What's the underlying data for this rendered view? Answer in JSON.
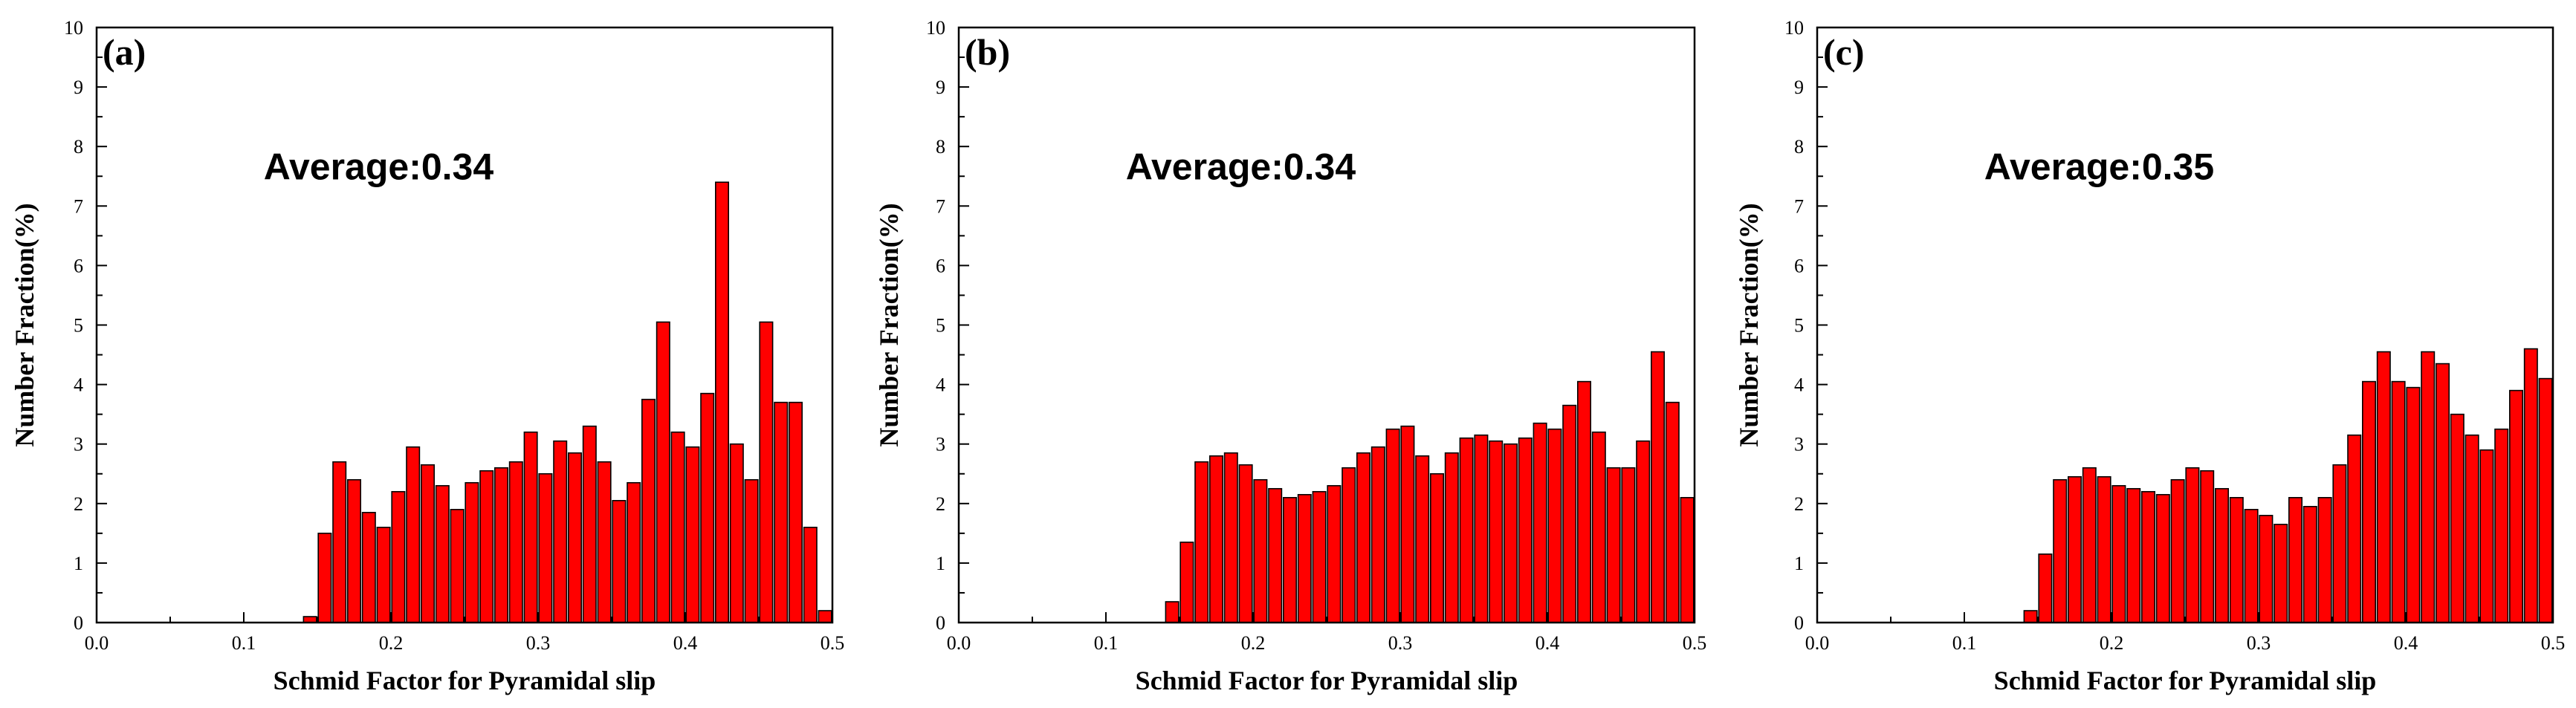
{
  "chart_data": [
    {
      "type": "bar",
      "panel_label": "(a)",
      "annotation": "Average:0.34",
      "xlabel": "Schmid Factor for Pyramidal slip",
      "ylabel": "Number Fraction(%)",
      "xlim": [
        0.0,
        0.5
      ],
      "ylim": [
        0,
        10
      ],
      "xticks": [
        "0.0",
        "0.1",
        "0.2",
        "0.3",
        "0.4",
        "0.5"
      ],
      "yticks": [
        "0",
        "1",
        "2",
        "3",
        "4",
        "5",
        "6",
        "7",
        "8",
        "9",
        "10"
      ],
      "bar_color": "#ff0000",
      "bin_width": 0.01,
      "x": [
        0.145,
        0.155,
        0.165,
        0.175,
        0.185,
        0.195,
        0.205,
        0.215,
        0.225,
        0.235,
        0.245,
        0.255,
        0.265,
        0.275,
        0.285,
        0.295,
        0.305,
        0.315,
        0.325,
        0.335,
        0.345,
        0.355,
        0.365,
        0.375,
        0.385,
        0.395,
        0.405,
        0.415,
        0.425,
        0.435,
        0.445,
        0.455,
        0.465,
        0.475,
        0.485,
        0.495
      ],
      "values": [
        0.1,
        1.5,
        2.7,
        2.4,
        1.85,
        1.6,
        2.2,
        2.95,
        2.65,
        2.3,
        1.9,
        2.35,
        2.55,
        2.6,
        2.7,
        3.2,
        2.5,
        3.05,
        2.85,
        3.3,
        2.7,
        2.05,
        2.35,
        3.75,
        5.05,
        3.2,
        2.95,
        3.85,
        7.4,
        3.0,
        2.4,
        5.05,
        3.7,
        3.7,
        1.6,
        0.2
      ]
    },
    {
      "type": "bar",
      "panel_label": "(b)",
      "annotation": "Average:0.34",
      "xlabel": "Schmid Factor for Pyramidal slip",
      "ylabel": "Number Fraction(%)",
      "xlim": [
        0.0,
        0.5
      ],
      "ylim": [
        0,
        10
      ],
      "xticks": [
        "0.0",
        "0.1",
        "0.2",
        "0.3",
        "0.4",
        "0.5"
      ],
      "yticks": [
        "0",
        "1",
        "2",
        "3",
        "4",
        "5",
        "6",
        "7",
        "8",
        "9",
        "10"
      ],
      "bar_color": "#ff0000",
      "bin_width": 0.01,
      "x": [
        0.145,
        0.155,
        0.165,
        0.175,
        0.185,
        0.195,
        0.205,
        0.215,
        0.225,
        0.235,
        0.245,
        0.255,
        0.265,
        0.275,
        0.285,
        0.295,
        0.305,
        0.315,
        0.325,
        0.335,
        0.345,
        0.355,
        0.365,
        0.375,
        0.385,
        0.395,
        0.405,
        0.415,
        0.425,
        0.435,
        0.445,
        0.455,
        0.465,
        0.475,
        0.485,
        0.495
      ],
      "values": [
        0.35,
        1.35,
        2.7,
        2.8,
        2.85,
        2.65,
        2.4,
        2.25,
        2.1,
        2.15,
        2.2,
        2.3,
        2.6,
        2.85,
        2.95,
        3.25,
        3.3,
        2.8,
        2.5,
        2.85,
        3.1,
        3.15,
        3.05,
        3.0,
        3.1,
        3.35,
        3.25,
        3.65,
        4.05,
        3.2,
        2.6,
        2.6,
        3.05,
        4.55,
        3.7,
        2.1
      ]
    },
    {
      "type": "bar",
      "panel_label": "(c)",
      "annotation": "Average:0.35",
      "xlabel": "Schmid Factor for Pyramidal slip",
      "ylabel": "Number Fraction(%)",
      "xlim": [
        0.0,
        0.5
      ],
      "ylim": [
        0,
        10
      ],
      "xticks": [
        "0.0",
        "0.1",
        "0.2",
        "0.3",
        "0.4",
        "0.5"
      ],
      "yticks": [
        "0",
        "1",
        "2",
        "3",
        "4",
        "5",
        "6",
        "7",
        "8",
        "9",
        "10"
      ],
      "bar_color": "#ff0000",
      "bin_width": 0.01,
      "x": [
        0.145,
        0.155,
        0.165,
        0.175,
        0.185,
        0.195,
        0.205,
        0.215,
        0.225,
        0.235,
        0.245,
        0.255,
        0.265,
        0.275,
        0.285,
        0.295,
        0.305,
        0.315,
        0.325,
        0.335,
        0.345,
        0.355,
        0.365,
        0.375,
        0.385,
        0.395,
        0.405,
        0.415,
        0.425,
        0.435,
        0.445,
        0.455,
        0.465,
        0.475,
        0.485,
        0.495
      ],
      "values": [
        0.2,
        1.15,
        2.4,
        2.45,
        2.6,
        2.45,
        2.3,
        2.25,
        2.2,
        2.15,
        2.4,
        2.6,
        2.55,
        2.25,
        2.1,
        1.9,
        1.8,
        1.65,
        2.1,
        1.95,
        2.1,
        2.65,
        3.15,
        4.05,
        4.55,
        4.05,
        3.95,
        4.55,
        4.35,
        3.5,
        3.15,
        2.9,
        3.25,
        3.9,
        4.6,
        4.1
      ]
    }
  ]
}
